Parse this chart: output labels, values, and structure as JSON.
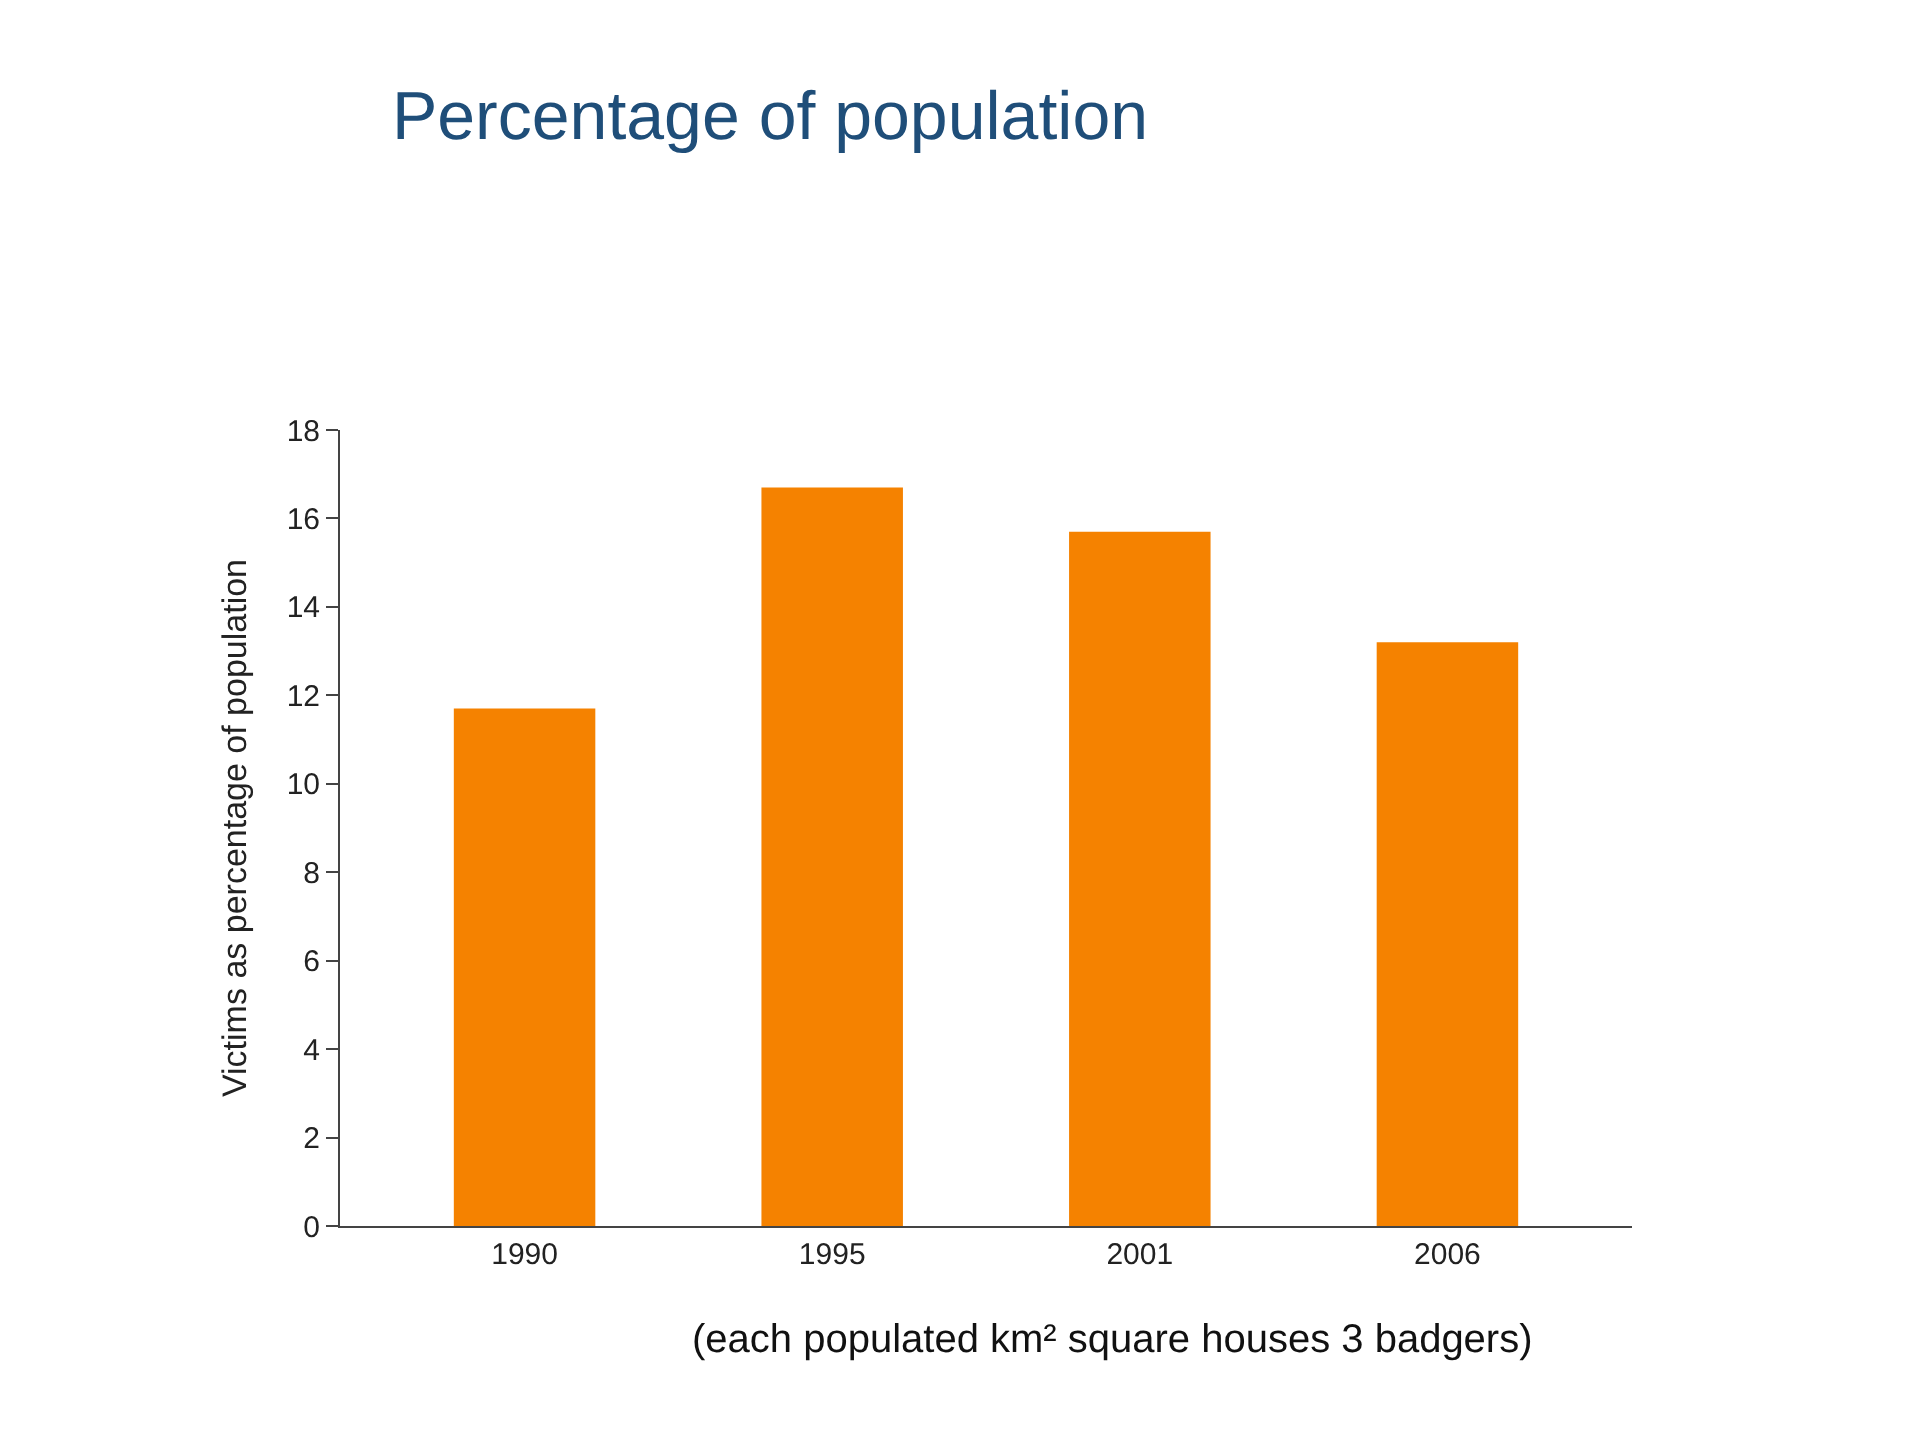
{
  "chart_data": {
    "type": "bar",
    "title": "Percentage of population",
    "ylabel": "Victims as percentage of population",
    "categories": [
      "1990",
      "1995",
      "2001",
      "2006"
    ],
    "values": [
      11.7,
      16.7,
      15.7,
      13.2
    ],
    "color": "#f58200",
    "ylim": [
      0,
      18
    ],
    "yticks": [
      0,
      2,
      4,
      6,
      8,
      10,
      12,
      14,
      16,
      18
    ],
    "annotations": [
      "(each populated km² square houses 3 badgers)"
    ]
  }
}
